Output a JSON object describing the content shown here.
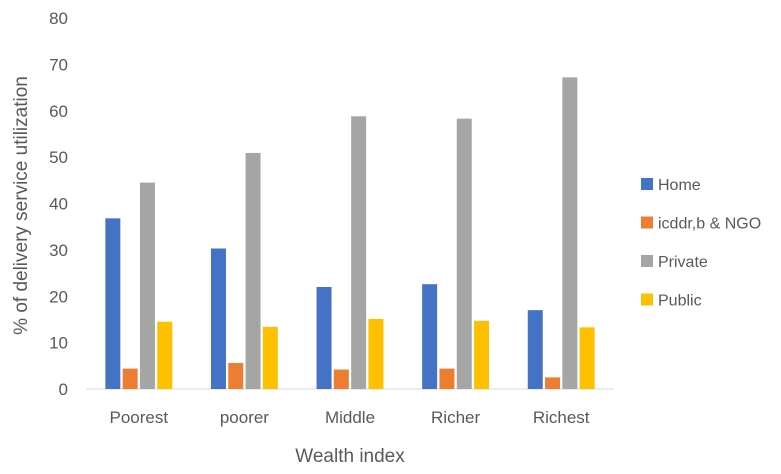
{
  "chart_data": {
    "type": "bar",
    "title": "",
    "xlabel": "Wealth index",
    "ylabel": "% of delivery service utilization",
    "ylim": [
      0,
      80
    ],
    "yticks": [
      0,
      10,
      20,
      30,
      40,
      50,
      60,
      70,
      80
    ],
    "grid": false,
    "legend_position": "right",
    "categories": [
      "Poorest",
      "poorer",
      "Middle",
      "Richer",
      "Richest"
    ],
    "series": [
      {
        "name": "Home",
        "color": "#4472C4",
        "values": [
          36.8,
          30.3,
          22.0,
          22.6,
          17.0
        ]
      },
      {
        "name": "icddr,b & NGO",
        "color": "#ED7D31",
        "values": [
          4.4,
          5.6,
          4.2,
          4.4,
          2.5
        ]
      },
      {
        "name": "Private",
        "color": "#A5A5A5",
        "values": [
          44.5,
          50.9,
          58.8,
          58.3,
          67.2
        ]
      },
      {
        "name": "Public",
        "color": "#FFC000",
        "values": [
          14.5,
          13.4,
          15.1,
          14.7,
          13.3
        ]
      }
    ]
  }
}
